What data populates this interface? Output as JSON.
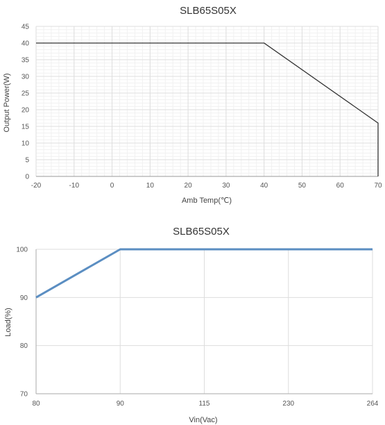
{
  "chart_data": [
    {
      "type": "line",
      "title": "SLB65S05X",
      "xlabel": "Amb Temp(℃)",
      "ylabel": "Output Power(W)",
      "xlim": [
        -20,
        70
      ],
      "ylim": [
        0,
        45
      ],
      "x_ticks": [
        -20,
        -10,
        0,
        10,
        20,
        30,
        40,
        50,
        60,
        70
      ],
      "y_ticks": [
        0,
        5,
        10,
        15,
        20,
        25,
        30,
        35,
        40,
        45
      ],
      "grid": true,
      "minor_grid": true,
      "series": [
        {
          "color": "#333333",
          "points": [
            [
              -20,
              40
            ],
            [
              40,
              40
            ],
            [
              70,
              16
            ],
            [
              70,
              0
            ]
          ]
        }
      ]
    },
    {
      "type": "line",
      "title": "SLB65S05X",
      "xlabel": "Vin(Vac)",
      "ylabel": "Load(%)",
      "x_categories": [
        "80",
        "90",
        "115",
        "230",
        "264"
      ],
      "ylim": [
        70,
        100
      ],
      "y_ticks": [
        70,
        80,
        90,
        100
      ],
      "grid": true,
      "series": [
        {
          "color": "#5b8ec2",
          "points": [
            [
              0,
              90
            ],
            [
              1,
              100
            ],
            [
              2,
              100
            ],
            [
              3,
              100
            ],
            [
              4,
              100
            ]
          ]
        }
      ]
    }
  ]
}
